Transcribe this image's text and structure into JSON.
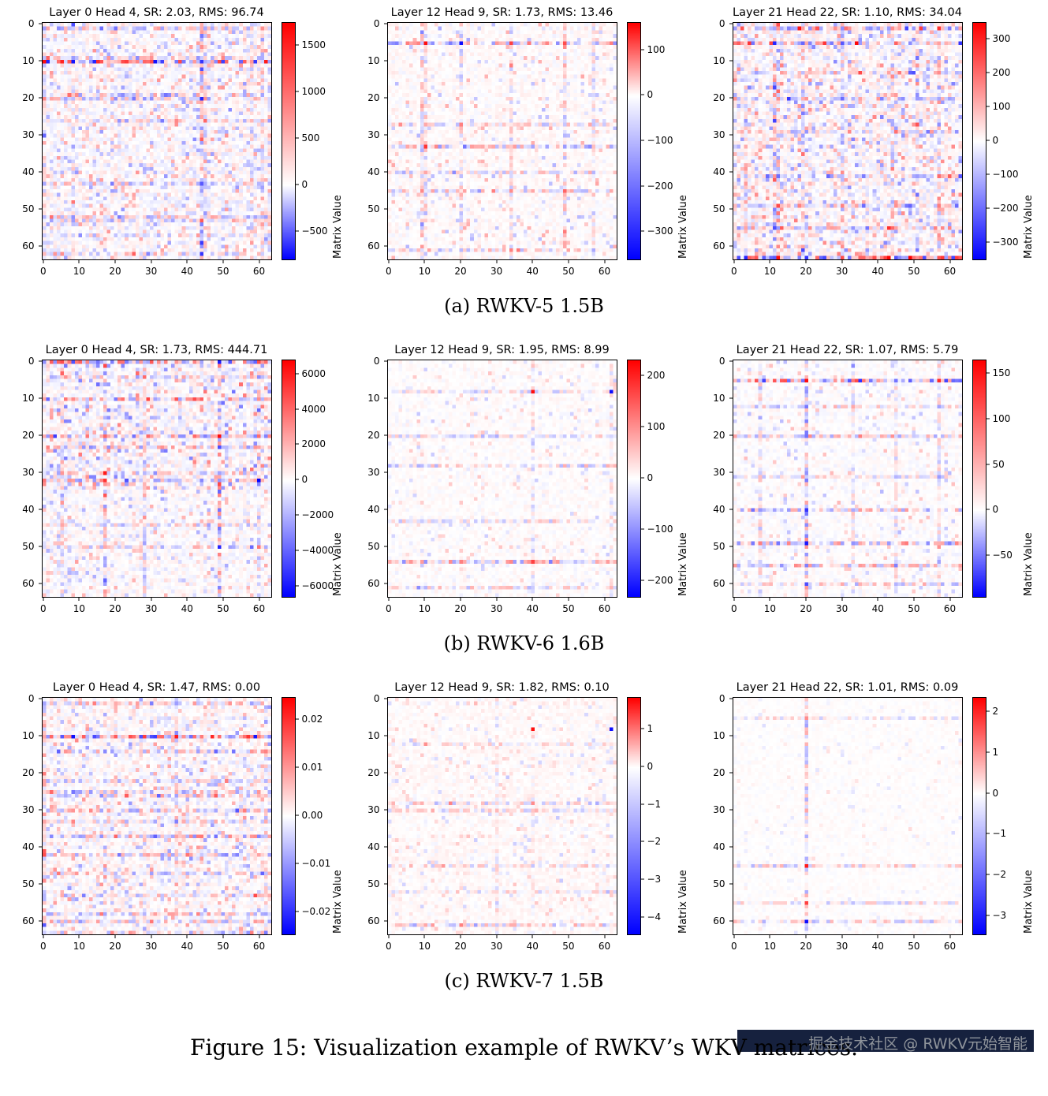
{
  "figure": {
    "captions": {
      "a": "(a) RWKV-5 1.5B",
      "b": "(b) RWKV-6 1.6B",
      "c": "(c) RWKV-7 1.5B"
    },
    "main_caption": "Figure 15: Visualization example of RWKV’s WKV matrices.",
    "watermark": "掘金技术社区 @ RWKV元始智能"
  },
  "colors": {
    "positive": "#ff0000",
    "negative": "#0000ff",
    "background": "#ffffff",
    "watermark_box": "#16213e",
    "watermark_text": "#8f949b"
  },
  "colorbar_label": "Matrix Value",
  "axis": {
    "size": 64,
    "ticks": [
      0,
      10,
      20,
      30,
      40,
      50,
      60
    ]
  },
  "chart_data": [
    {
      "type": "heatmap",
      "group": "RWKV-5 1.5B",
      "title": "Layer 0 Head 4, SR: 2.03, RMS: 96.74",
      "vmin": -800,
      "vmax": 1750,
      "cbar_tick_values": [
        1500,
        1000,
        500,
        0,
        -500
      ],
      "cbar_tick_labels": [
        "1500",
        "1000",
        "500",
        "0",
        "−500"
      ],
      "gen": {
        "seed": 101,
        "noise": 0.13,
        "speckle_p": 0.25,
        "speckle_amp": 0.35,
        "bias": 0,
        "rows": [
          [
            1,
            0.35
          ],
          [
            9,
            0.3
          ],
          [
            10,
            0.85
          ],
          [
            19,
            0.4
          ],
          [
            20,
            0.35
          ],
          [
            26,
            0.25
          ],
          [
            43,
            0.35
          ],
          [
            52,
            0.4
          ],
          [
            53,
            0.3
          ],
          [
            57,
            0.25
          ],
          [
            62,
            0.3
          ]
        ],
        "cols": [
          [
            0,
            0.3
          ],
          [
            8,
            0.25
          ],
          [
            44,
            0.55
          ],
          [
            45,
            0.35
          ],
          [
            58,
            0.3
          ],
          [
            61,
            0.35
          ],
          [
            63,
            0.35
          ]
        ],
        "outliers": [
          [
            10,
            0,
            0.95
          ],
          [
            10,
            1,
            -0.85
          ],
          [
            10,
            62,
            0.9
          ],
          [
            10,
            44,
            -0.8
          ],
          [
            20,
            44,
            -0.85
          ],
          [
            12,
            44,
            -0.7
          ],
          [
            0,
            8,
            -0.7
          ],
          [
            30,
            0,
            -0.6
          ],
          [
            10,
            30,
            0.7
          ],
          [
            10,
            50,
            -0.75
          ]
        ]
      }
    },
    {
      "type": "heatmap",
      "group": "RWKV-5 1.5B",
      "title": "Layer 12 Head 9, SR: 1.73, RMS: 13.46",
      "vmin": -360,
      "vmax": 160,
      "cbar_tick_values": [
        100,
        0,
        -100,
        -200,
        -300
      ],
      "cbar_tick_labels": [
        "100",
        "0",
        "−100",
        "−200",
        "−300"
      ],
      "gen": {
        "seed": 102,
        "noise": 0.07,
        "speckle_p": 0.12,
        "speckle_amp": 0.3,
        "bias": 0.015,
        "rows": [
          [
            5,
            0.55
          ],
          [
            27,
            0.3
          ],
          [
            33,
            0.4
          ],
          [
            40,
            0.3
          ],
          [
            45,
            0.35
          ],
          [
            61,
            0.3
          ]
        ],
        "cols": [
          [
            9,
            0.35
          ],
          [
            10,
            0.3
          ],
          [
            20,
            0.3
          ],
          [
            34,
            0.3
          ],
          [
            49,
            0.35
          ],
          [
            57,
            0.25
          ]
        ],
        "outliers": [
          [
            5,
            10,
            0.95
          ],
          [
            5,
            20,
            -0.95
          ],
          [
            5,
            34,
            0.75
          ],
          [
            5,
            49,
            0.7
          ],
          [
            5,
            62,
            0.5
          ],
          [
            33,
            10,
            0.8
          ],
          [
            45,
            49,
            0.6
          ],
          [
            61,
            34,
            0.5
          ],
          [
            27,
            20,
            0.5
          ]
        ]
      }
    },
    {
      "type": "heatmap",
      "group": "RWKV-5 1.5B",
      "title": "Layer 21 Head 22, SR: 1.10, RMS: 34.04",
      "vmin": -350,
      "vmax": 350,
      "cbar_tick_values": [
        300,
        200,
        100,
        0,
        -100,
        -200,
        -300
      ],
      "cbar_tick_labels": [
        "300",
        "200",
        "100",
        "0",
        "−100",
        "−200",
        "−300"
      ],
      "gen": {
        "seed": 103,
        "noise": 0.14,
        "speckle_p": 0.3,
        "speckle_amp": 0.4,
        "bias": 0.01,
        "rows": [
          [
            1,
            0.5
          ],
          [
            5,
            0.55
          ],
          [
            13,
            0.3
          ],
          [
            20,
            0.4
          ],
          [
            29,
            0.3
          ],
          [
            41,
            0.4
          ],
          [
            49,
            0.3
          ],
          [
            55,
            0.45
          ],
          [
            63,
            0.8
          ]
        ],
        "cols": [
          [
            3,
            0.3
          ],
          [
            11,
            0.55
          ],
          [
            12,
            0.5
          ],
          [
            19,
            0.4
          ],
          [
            30,
            0.35
          ],
          [
            44,
            0.35
          ],
          [
            51,
            0.3
          ],
          [
            57,
            0.35
          ]
        ],
        "outliers": [
          [
            63,
            12,
            0.95
          ],
          [
            63,
            3,
            -0.85
          ],
          [
            63,
            20,
            -0.8
          ],
          [
            63,
            30,
            0.7
          ],
          [
            5,
            11,
            -0.85
          ],
          [
            1,
            57,
            0.8
          ],
          [
            0,
            12,
            0.7
          ],
          [
            55,
            11,
            -0.7
          ]
        ]
      }
    },
    {
      "type": "heatmap",
      "group": "RWKV-6 1.6B",
      "title": "Layer 0 Head 4, SR: 1.73, RMS: 444.71",
      "vmin": -6600,
      "vmax": 6800,
      "cbar_tick_values": [
        6000,
        4000,
        2000,
        0,
        -2000,
        -4000,
        -6000
      ],
      "cbar_tick_labels": [
        "6000",
        "4000",
        "2000",
        "0",
        "−2000",
        "−4000",
        "−6000"
      ],
      "gen": {
        "seed": 104,
        "noise": 0.1,
        "speckle_p": 0.2,
        "speckle_amp": 0.3,
        "bias": 0,
        "region_gain": [
          0,
          34,
          1.7
        ],
        "rows": [
          [
            0,
            0.6
          ],
          [
            4,
            0.3
          ],
          [
            10,
            0.45
          ],
          [
            20,
            0.5
          ],
          [
            23,
            0.4
          ],
          [
            30,
            0.35
          ],
          [
            32,
            0.5
          ],
          [
            44,
            0.25
          ],
          [
            50,
            0.35
          ]
        ],
        "cols": [
          [
            5,
            0.3
          ],
          [
            17,
            0.5
          ],
          [
            28,
            0.3
          ],
          [
            49,
            0.6
          ],
          [
            60,
            0.35
          ]
        ],
        "outliers": [
          [
            20,
            49,
            0.95
          ],
          [
            30,
            17,
            0.9
          ],
          [
            32,
            17,
            0.8
          ],
          [
            0,
            49,
            -0.9
          ],
          [
            50,
            49,
            -0.85
          ],
          [
            23,
            49,
            -0.7
          ],
          [
            0,
            5,
            0.7
          ],
          [
            0,
            30,
            0.65
          ],
          [
            0,
            60,
            0.7
          ],
          [
            20,
            17,
            0.6
          ],
          [
            35,
            49,
            -0.6
          ]
        ]
      }
    },
    {
      "type": "heatmap",
      "group": "RWKV-6 1.6B",
      "title": "Layer 12 Head 9, SR: 1.95, RMS: 8.99",
      "vmin": -230,
      "vmax": 230,
      "cbar_tick_values": [
        200,
        100,
        0,
        -100,
        -200
      ],
      "cbar_tick_labels": [
        "200",
        "100",
        "0",
        "−100",
        "−200"
      ],
      "gen": {
        "seed": 105,
        "noise": 0.055,
        "speckle_p": 0.09,
        "speckle_amp": 0.22,
        "bias": 0.008,
        "rows": [
          [
            8,
            0.25
          ],
          [
            20,
            0.25
          ],
          [
            28,
            0.3
          ],
          [
            43,
            0.25
          ],
          [
            54,
            0.45
          ],
          [
            61,
            0.3
          ]
        ],
        "cols": [
          [
            40,
            0.25
          ],
          [
            62,
            0.2
          ]
        ],
        "outliers": [
          [
            8,
            40,
            0.95
          ],
          [
            8,
            62,
            -0.95
          ],
          [
            54,
            40,
            0.75
          ],
          [
            54,
            20,
            0.5
          ],
          [
            61,
            8,
            -0.45
          ]
        ]
      }
    },
    {
      "type": "heatmap",
      "group": "RWKV-6 1.6B",
      "title": "Layer 21 Head 22, SR: 1.07, RMS: 5.79",
      "vmin": -95,
      "vmax": 165,
      "cbar_tick_values": [
        150,
        100,
        50,
        0,
        -50
      ],
      "cbar_tick_labels": [
        "150",
        "100",
        "50",
        "0",
        "−50"
      ],
      "gen": {
        "seed": 106,
        "noise": 0.06,
        "speckle_p": 0.1,
        "speckle_amp": 0.25,
        "bias": 0,
        "rows": [
          [
            5,
            0.7
          ],
          [
            12,
            0.3
          ],
          [
            20,
            0.35
          ],
          [
            31,
            0.25
          ],
          [
            40,
            0.4
          ],
          [
            49,
            0.5
          ],
          [
            55,
            0.4
          ],
          [
            60,
            0.35
          ]
        ],
        "cols": [
          [
            7,
            0.3
          ],
          [
            20,
            0.6
          ],
          [
            33,
            0.25
          ],
          [
            45,
            0.25
          ],
          [
            57,
            0.25
          ]
        ],
        "outliers": [
          [
            5,
            20,
            0.95
          ],
          [
            5,
            8,
            -0.75
          ],
          [
            5,
            32,
            -0.65
          ],
          [
            5,
            55,
            -0.6
          ],
          [
            5,
            45,
            -0.55
          ],
          [
            49,
            20,
            -0.9
          ],
          [
            40,
            20,
            -0.8
          ],
          [
            60,
            20,
            -0.7
          ],
          [
            20,
            20,
            -0.55
          ],
          [
            55,
            20,
            -0.5
          ]
        ]
      }
    },
    {
      "type": "heatmap",
      "group": "RWKV-7 1.5B",
      "title": "Layer 0 Head 4, SR: 1.47, RMS: 0.00",
      "vmin": -0.0245,
      "vmax": 0.0245,
      "cbar_tick_values": [
        0.02,
        0.01,
        0,
        -0.01,
        -0.02
      ],
      "cbar_tick_labels": [
        "0.02",
        "0.01",
        "0.00",
        "−0.01",
        "−0.02"
      ],
      "gen": {
        "seed": 107,
        "noise": 0.12,
        "speckle_p": 0.22,
        "speckle_amp": 0.35,
        "bias": 0.01,
        "rows": [
          [
            1,
            0.4
          ],
          [
            10,
            0.85
          ],
          [
            14,
            0.35
          ],
          [
            22,
            0.3
          ],
          [
            25,
            0.45
          ],
          [
            26,
            0.4
          ],
          [
            30,
            0.4
          ],
          [
            33,
            0.3
          ],
          [
            37,
            0.5
          ],
          [
            42,
            0.45
          ],
          [
            47,
            0.3
          ],
          [
            53,
            0.3
          ],
          [
            58,
            0.4
          ],
          [
            60,
            0.4
          ],
          [
            63,
            0.35
          ]
        ],
        "cols": [
          [
            0,
            0.35
          ],
          [
            37,
            0.3
          ],
          [
            62,
            0.3
          ]
        ],
        "outliers": [
          [
            10,
            8,
            -0.95
          ],
          [
            10,
            37,
            0.9
          ],
          [
            10,
            47,
            0.85
          ],
          [
            10,
            57,
            0.8
          ],
          [
            10,
            30,
            -0.7
          ],
          [
            10,
            2,
            0.6
          ],
          [
            42,
            0,
            0.7
          ],
          [
            37,
            20,
            0.6
          ]
        ]
      }
    },
    {
      "type": "heatmap",
      "group": "RWKV-7 1.5B",
      "title": "Layer 12 Head 9, SR: 1.82, RMS: 0.10",
      "vmin": -4.45,
      "vmax": 1.85,
      "cbar_tick_values": [
        1,
        0,
        -1,
        -2,
        -3,
        -4
      ],
      "cbar_tick_labels": [
        "1",
        "0",
        "−1",
        "−2",
        "−3",
        "−4"
      ],
      "gen": {
        "seed": 108,
        "noise": 0.06,
        "speckle_p": 0.12,
        "speckle_amp": 0.2,
        "bias": 0.02,
        "rows": [
          [
            12,
            0.2
          ],
          [
            28,
            0.3
          ],
          [
            30,
            0.25
          ],
          [
            45,
            0.25
          ],
          [
            52,
            0.2
          ],
          [
            61,
            0.35
          ]
        ],
        "cols": [
          [
            30,
            0.2
          ],
          [
            40,
            0.15
          ]
        ],
        "outliers": [
          [
            8,
            40,
            0.95
          ],
          [
            8,
            62,
            -0.95
          ],
          [
            61,
            20,
            0.5
          ],
          [
            28,
            40,
            0.45
          ]
        ]
      }
    },
    {
      "type": "heatmap",
      "group": "RWKV-7 1.5B",
      "title": "Layer 21 Head 22, SR: 1.01, RMS: 0.09",
      "vmin": -3.45,
      "vmax": 2.35,
      "cbar_tick_values": [
        2,
        1,
        0,
        -1,
        -2,
        -3
      ],
      "cbar_tick_labels": [
        "2",
        "1",
        "0",
        "−1",
        "−2",
        "−3"
      ],
      "gen": {
        "seed": 109,
        "noise": 0.035,
        "speckle_p": 0.05,
        "speckle_amp": 0.12,
        "bias": 0.005,
        "rows": [
          [
            5,
            0.2
          ],
          [
            45,
            0.3
          ],
          [
            55,
            0.25
          ],
          [
            60,
            0.3
          ]
        ],
        "cols": [
          [
            20,
            0.4
          ]
        ],
        "outliers": [
          [
            45,
            20,
            0.9
          ],
          [
            55,
            20,
            0.75
          ],
          [
            60,
            20,
            -0.95
          ],
          [
            5,
            20,
            0.45
          ],
          [
            30,
            20,
            0.35
          ],
          [
            12,
            20,
            0.3
          ]
        ]
      }
    }
  ]
}
